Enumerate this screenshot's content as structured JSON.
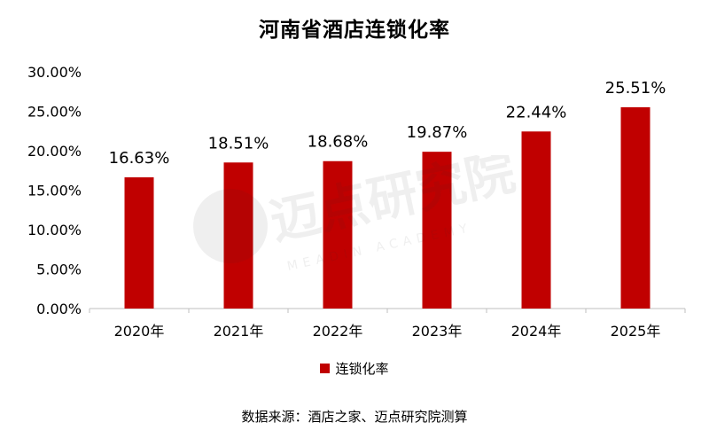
{
  "chart_data": {
    "type": "bar",
    "title": "河南省酒店连锁化率",
    "categories": [
      "2020年",
      "2021年",
      "2022年",
      "2023年",
      "2024年",
      "2025年"
    ],
    "series": [
      {
        "name": "连锁化率",
        "values": [
          16.63,
          18.51,
          18.68,
          19.87,
          22.44,
          25.51
        ]
      }
    ],
    "data_labels": [
      "16.63%",
      "18.51%",
      "18.68%",
      "19.87%",
      "22.44%",
      "25.51%"
    ],
    "y_ticks": [
      "0.00%",
      "5.00%",
      "10.00%",
      "15.00%",
      "20.00%",
      "25.00%",
      "30.00%"
    ],
    "ylim": [
      0,
      30
    ],
    "grid": false,
    "legend_position": "bottom",
    "colors": {
      "bar": "#C00000"
    }
  },
  "watermark": {
    "text": "迈点研究院",
    "subtext": "MEADIN ACADEMY"
  },
  "source": "数据来源：酒店之家、迈点研究院测算"
}
